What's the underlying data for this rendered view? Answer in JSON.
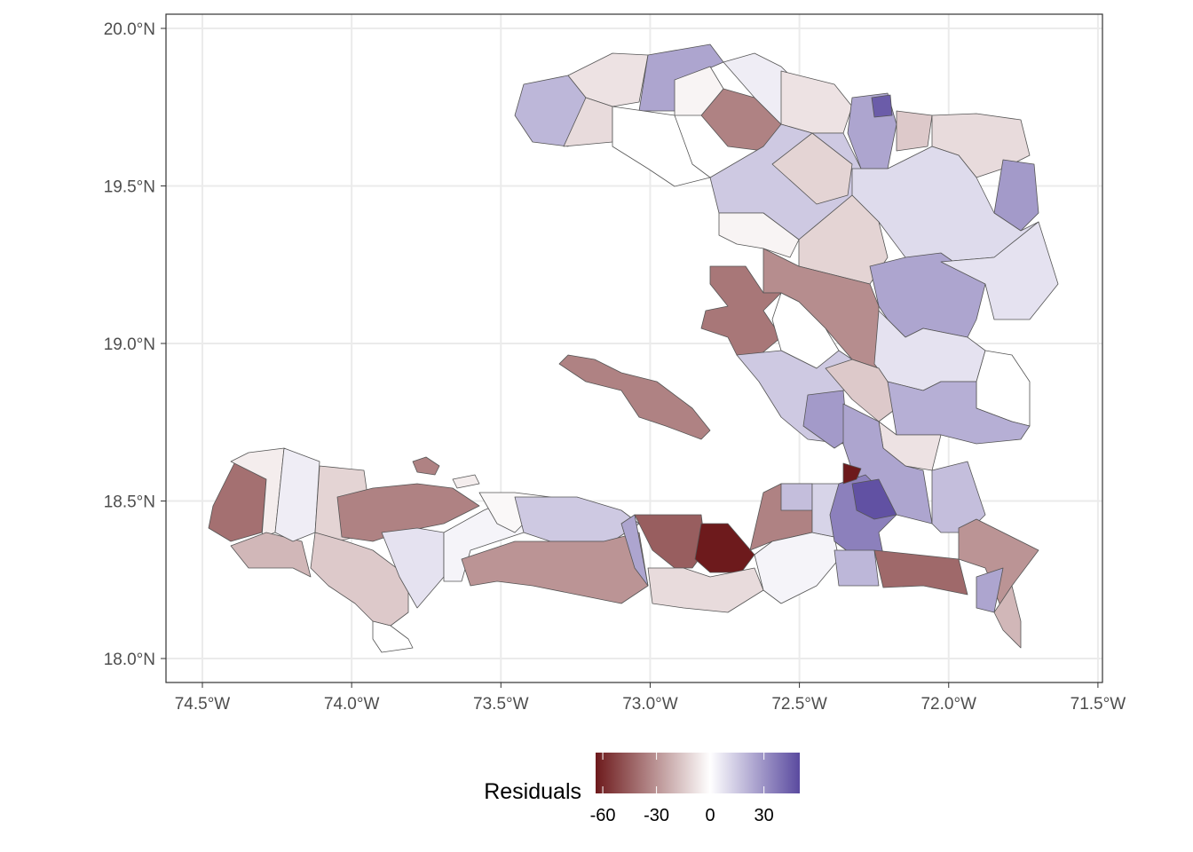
{
  "chart_data": {
    "type": "choropleth",
    "xlabel": "",
    "ylabel": "",
    "xlim": [
      -74.62,
      -71.48
    ],
    "ylim": [
      17.93,
      20.05
    ],
    "x_ticks": [
      {
        "value": -74.5,
        "label": "74.5°W"
      },
      {
        "value": -74.0,
        "label": "74.0°W"
      },
      {
        "value": -73.5,
        "label": "73.5°W"
      },
      {
        "value": -73.0,
        "label": "73.0°W"
      },
      {
        "value": -72.5,
        "label": "72.5°W"
      },
      {
        "value": -72.0,
        "label": "72.0°W"
      },
      {
        "value": -71.5,
        "label": "71.5°W"
      }
    ],
    "y_ticks": [
      {
        "value": 18.0,
        "label": "18.0°N"
      },
      {
        "value": 18.5,
        "label": "18.5°N"
      },
      {
        "value": 19.0,
        "label": "19.0°N"
      },
      {
        "value": 19.5,
        "label": "19.5°N"
      },
      {
        "value": 20.0,
        "label": "20.0°N"
      }
    ],
    "grid": true,
    "legend": {
      "title": "Residuals",
      "position": "bottom",
      "range": [
        -64,
        50
      ],
      "ticks": [
        {
          "value": -60,
          "label": "-60"
        },
        {
          "value": -30,
          "label": "-30"
        },
        {
          "value": 0,
          "label": "0"
        },
        {
          "value": 30,
          "label": "30"
        }
      ],
      "low_color": "#6d1a1c",
      "mid_color": "#ffffff",
      "high_color": "#5a4a9f"
    },
    "residuals": [
      20,
      -8,
      25,
      -10,
      0,
      -35,
      -3,
      5,
      -8,
      25,
      45,
      -15,
      -10,
      28,
      15,
      -12,
      10,
      -12,
      -3,
      -32,
      -38,
      25,
      8,
      0,
      8,
      0,
      15,
      -15,
      28,
      22,
      -8,
      25,
      18,
      -35,
      -40,
      -5,
      -20,
      5,
      -12,
      -35,
      -15,
      0,
      8,
      3,
      -2,
      15,
      -30,
      25,
      -45,
      -65,
      -10,
      -35,
      18,
      3,
      12,
      35,
      -65,
      48,
      20,
      -42,
      -30,
      25,
      -20,
      -35,
      -5
    ]
  }
}
